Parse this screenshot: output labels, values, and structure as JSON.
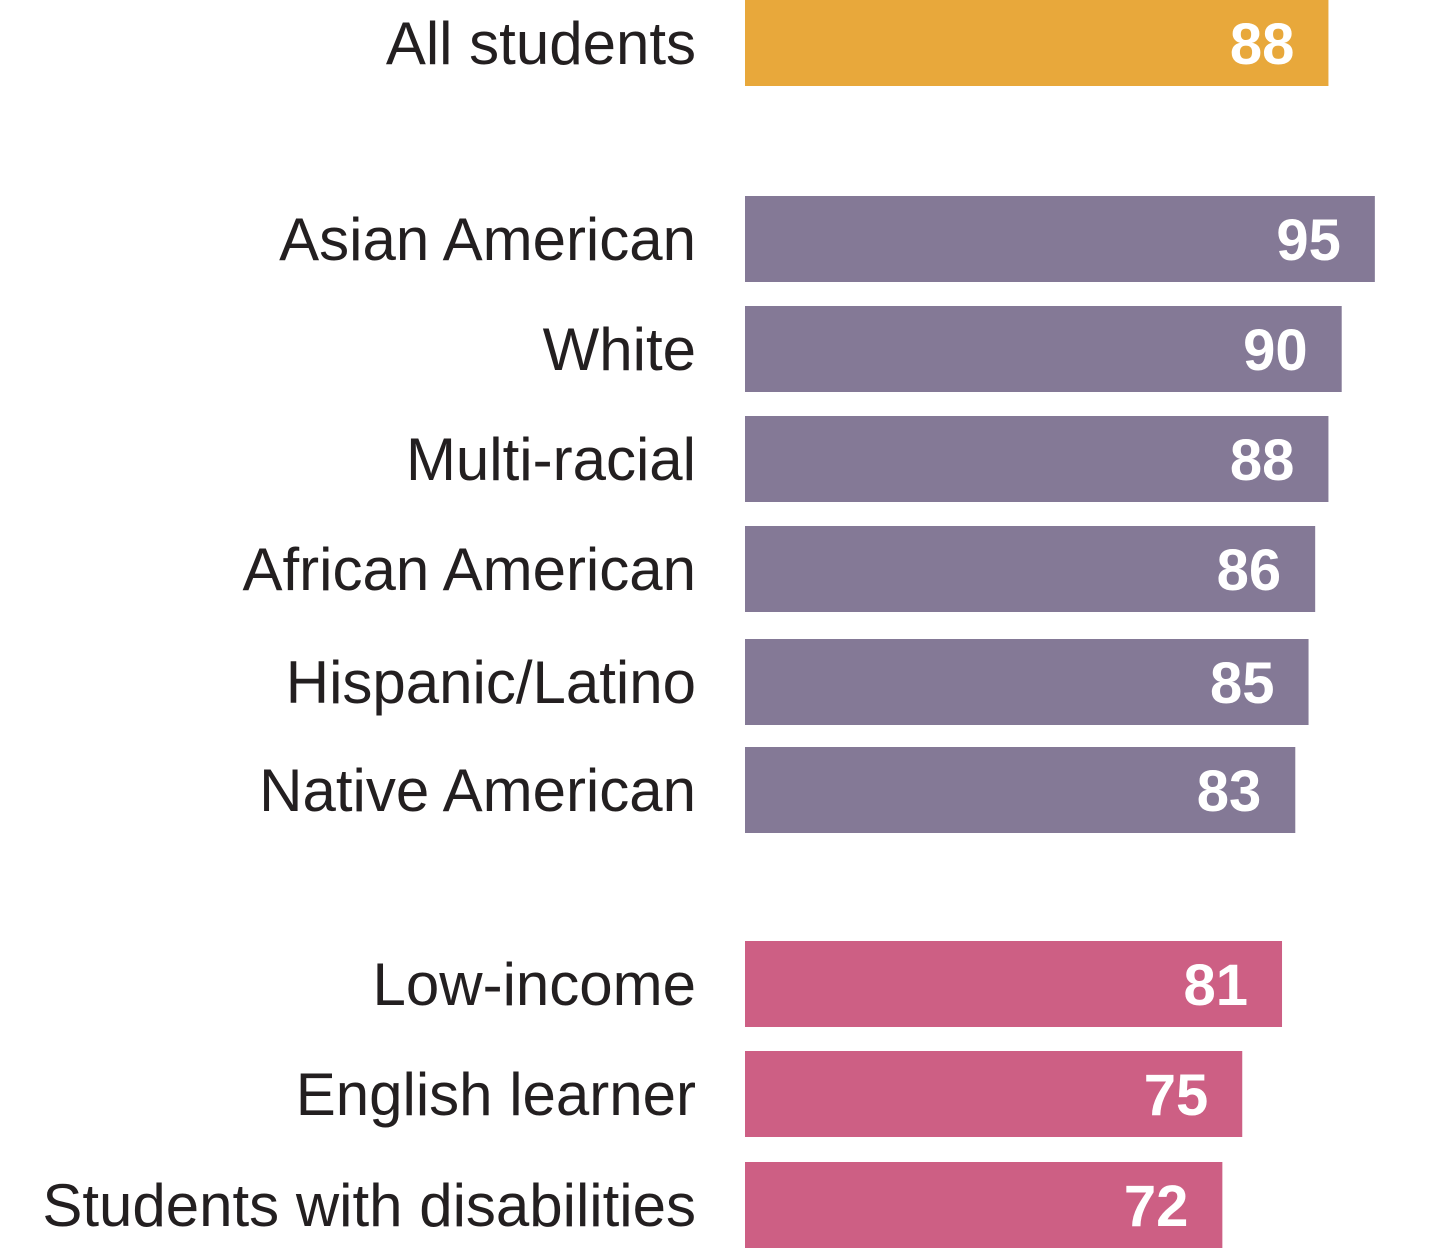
{
  "chart_data": {
    "type": "bar",
    "orientation": "horizontal",
    "title": "",
    "xlabel": "",
    "ylabel": "",
    "categories": [
      "All students",
      "Asian American",
      "White",
      "Multi-racial",
      "African American",
      "Hispanic/Latino",
      "Native American",
      "Low-income",
      "English learner",
      "Students with disabilities"
    ],
    "values": [
      88,
      95,
      90,
      88,
      86,
      85,
      83,
      81,
      75,
      72
    ],
    "groups": [
      "overall",
      "race",
      "race",
      "race",
      "race",
      "race",
      "race",
      "subgroup",
      "subgroup",
      "subgroup"
    ],
    "colors": {
      "overall": "#e8a83b",
      "race": "#847996",
      "subgroup": "#cd5f84"
    },
    "grid": false,
    "legend": "none"
  }
}
